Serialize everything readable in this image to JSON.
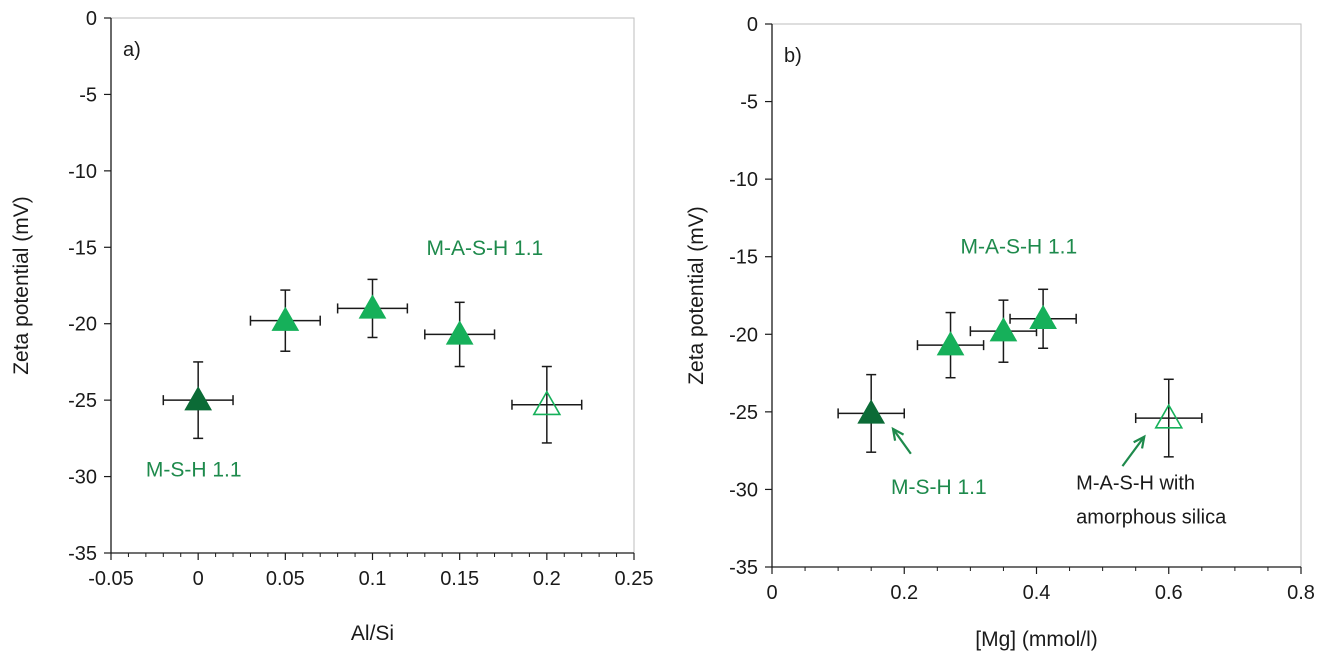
{
  "colors": {
    "msh": "#0b6b36",
    "mash": "#16b05a",
    "annotation_green": "#1e8a4c",
    "axis": "#1a1a1a"
  },
  "chart_data": [
    {
      "type": "scatter",
      "panel_label": "a)",
      "xlabel": "Al/Si",
      "ylabel": "Zeta potential (mV)",
      "xlim": [
        -0.05,
        0.25
      ],
      "ylim": [
        -35,
        0
      ],
      "xticks": [
        "-0.05",
        "0",
        "0.05",
        "0.1",
        "0.15",
        "0.2",
        "0.25"
      ],
      "yticks": [
        "0",
        "-5",
        "-10",
        "-15",
        "-20",
        "-25",
        "-30",
        "-35"
      ],
      "points": [
        {
          "x": 0,
          "y": -25.0,
          "xerr": 0.02,
          "yerr": 2.5,
          "style": "filled-dark"
        },
        {
          "x": 0.05,
          "y": -19.8,
          "xerr": 0.02,
          "yerr": 2.0,
          "style": "filled"
        },
        {
          "x": 0.1,
          "y": -19.0,
          "xerr": 0.02,
          "yerr": 1.9,
          "style": "filled"
        },
        {
          "x": 0.15,
          "y": -20.7,
          "xerr": 0.02,
          "yerr": 2.1,
          "style": "filled"
        },
        {
          "x": 0.2,
          "y": -25.3,
          "xerr": 0.02,
          "yerr": 2.5,
          "style": "open"
        }
      ],
      "annotations": [
        {
          "text": "M-A-S-H 1.1",
          "x": 0.131,
          "y": -15.5,
          "color": "green"
        },
        {
          "text": "M-S-H 1.1",
          "x": -0.03,
          "y": -30.0,
          "color": "green"
        }
      ]
    },
    {
      "type": "scatter",
      "panel_label": "b)",
      "xlabel": "[Mg] (mmol/l)",
      "ylabel": "Zeta potential (mV)",
      "xlim": [
        0,
        0.8
      ],
      "ylim": [
        -35,
        0
      ],
      "xticks": [
        "0",
        "0.2",
        "0.4",
        "0.6",
        "0.8"
      ],
      "yticks": [
        "0",
        "-5",
        "-10",
        "-15",
        "-20",
        "-25",
        "-30",
        "-35"
      ],
      "points": [
        {
          "x": 0.15,
          "y": -25.1,
          "xerr": 0.05,
          "yerr": 2.5,
          "style": "filled-dark"
        },
        {
          "x": 0.27,
          "y": -20.7,
          "xerr": 0.05,
          "yerr": 2.1,
          "style": "filled"
        },
        {
          "x": 0.35,
          "y": -19.8,
          "xerr": 0.05,
          "yerr": 2.0,
          "style": "filled"
        },
        {
          "x": 0.41,
          "y": -19.0,
          "xerr": 0.05,
          "yerr": 1.9,
          "style": "filled"
        },
        {
          "x": 0.6,
          "y": -25.4,
          "xerr": 0.05,
          "yerr": 2.5,
          "style": "open"
        }
      ],
      "annotations": [
        {
          "text": "M-A-S-H 1.1",
          "x": 0.285,
          "y": -14.8,
          "color": "green"
        },
        {
          "text": "M-S-H 1.1",
          "x": 0.18,
          "y": -30.3,
          "color": "green"
        },
        {
          "text": "M-A-S-H with",
          "x": 0.46,
          "y": -30.0,
          "color": "black"
        },
        {
          "text": "amorphous silica",
          "x": 0.46,
          "y": -32.2,
          "color": "black"
        }
      ],
      "arrows": [
        {
          "from": [
            0.21,
            -27.7
          ],
          "to": [
            0.183,
            -26.1
          ],
          "color": "green"
        },
        {
          "from": [
            0.53,
            -28.5
          ],
          "to": [
            0.563,
            -26.6
          ],
          "color": "green"
        }
      ]
    }
  ]
}
